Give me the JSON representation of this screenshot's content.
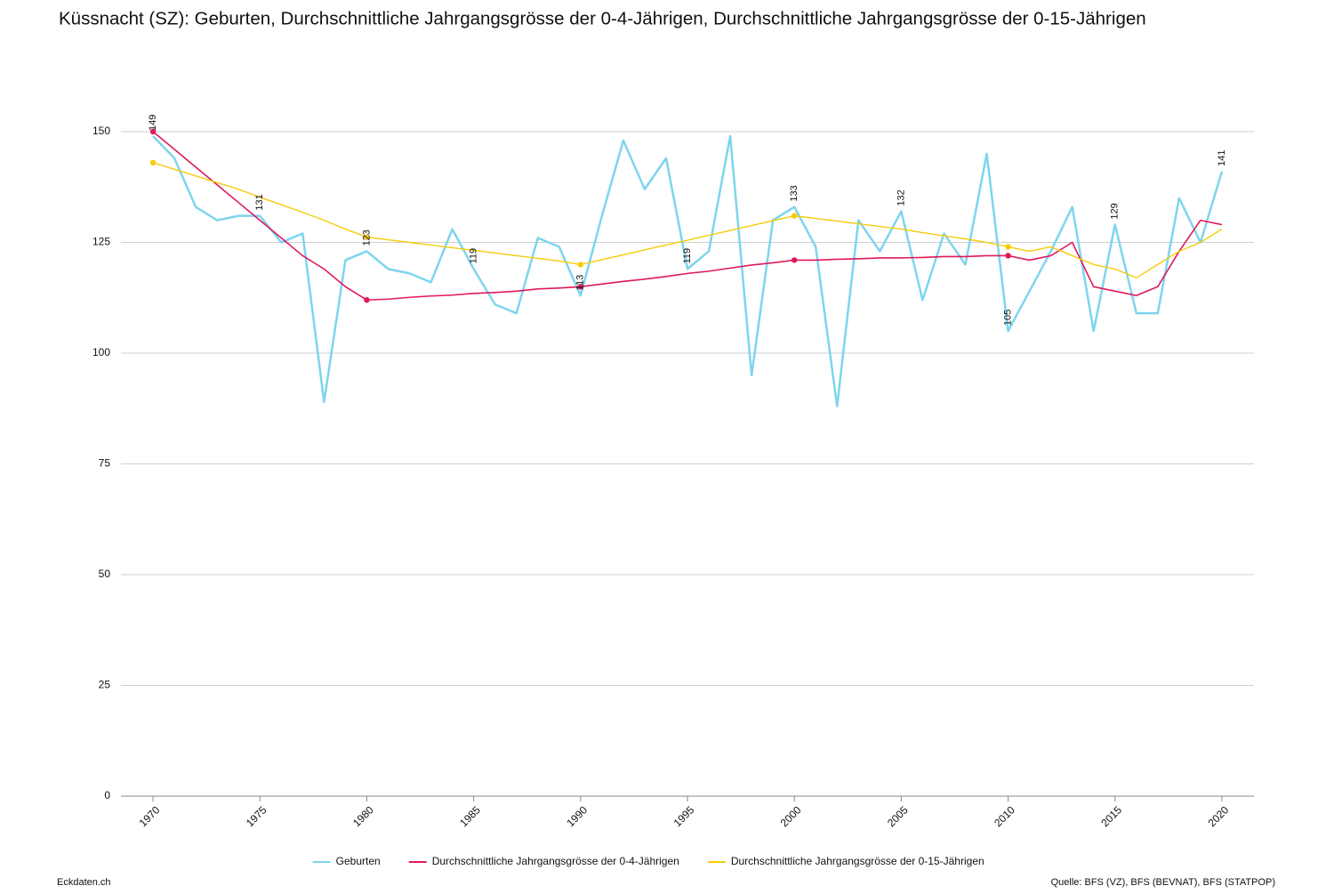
{
  "chart_data": {
    "type": "line",
    "title": "Küssnacht (SZ): Geburten, Durchschnittliche Jahrgangsgrösse der 0-4-Jährigen, Durchschnittliche Jahrgangsgrösse der 0-15-Jährigen",
    "x": [
      1970,
      1971,
      1972,
      1973,
      1974,
      1975,
      1976,
      1977,
      1978,
      1979,
      1980,
      1981,
      1982,
      1983,
      1984,
      1985,
      1986,
      1987,
      1988,
      1989,
      1990,
      1991,
      1992,
      1993,
      1994,
      1995,
      1996,
      1997,
      1998,
      1999,
      2000,
      2001,
      2002,
      2003,
      2004,
      2005,
      2006,
      2007,
      2008,
      2009,
      2010,
      2011,
      2012,
      2013,
      2014,
      2015,
      2016,
      2017,
      2018,
      2019,
      2020
    ],
    "series": [
      {
        "name": "Geburten",
        "color": "#7dd5ee",
        "values": [
          149,
          144,
          133,
          130,
          131,
          131,
          125,
          127,
          89,
          121,
          123,
          119,
          118,
          116,
          128,
          119,
          111,
          109,
          126,
          124,
          113,
          131,
          148,
          137,
          144,
          119,
          123,
          149,
          95,
          130,
          133,
          124,
          88,
          130,
          123,
          132,
          112,
          127,
          120,
          145,
          105,
          114,
          123,
          133,
          105,
          129,
          109,
          109,
          135,
          125,
          141
        ]
      },
      {
        "name": "Durchschnittliche Jahrgangsgrösse der 0-4-Jährigen",
        "color": "#e0195a",
        "values": [
          150,
          146,
          142,
          138,
          134,
          130,
          126,
          122,
          119,
          115,
          112,
          112.2,
          112.6,
          112.9,
          113.1,
          113.5,
          113.7,
          114,
          114.5,
          114.7,
          115,
          115.6,
          116.2,
          116.7,
          117.3,
          118,
          118.5,
          119.2,
          119.9,
          120.4,
          121,
          121,
          121.2,
          121.3,
          121.5,
          121.5,
          121.6,
          121.8,
          121.8,
          122,
          122,
          121,
          122,
          125,
          115,
          114,
          113,
          115,
          123,
          130,
          129
        ]
      },
      {
        "name": "Durchschnittliche Jahrgangsgrösse der 0-15-Jährigen",
        "color": "#f5cc0a",
        "values": [
          143,
          141.5,
          140,
          138.5,
          137,
          135.2,
          133.5,
          131.8,
          130,
          128,
          126.2,
          125.6,
          125,
          124.4,
          123.8,
          123.2,
          122.6,
          122,
          121.4,
          120.8,
          120,
          121.1,
          122.2,
          123.3,
          124.4,
          125.5,
          126.6,
          127.7,
          128.8,
          129.9,
          131,
          130.4,
          129.8,
          129.2,
          128.6,
          128,
          127.2,
          126.5,
          125.8,
          125,
          124,
          123,
          124,
          122,
          120,
          119,
          117,
          120,
          123,
          125,
          128
        ]
      }
    ],
    "xlim": [
      1968.5,
      2021.5
    ],
    "xticks": [
      1970,
      1975,
      1980,
      1985,
      1990,
      1995,
      2000,
      2005,
      2010,
      2015,
      2020
    ],
    "ylim": [
      0,
      150
    ],
    "yticks": [
      0,
      25,
      50,
      75,
      100,
      125,
      150
    ],
    "grid": true,
    "footer_left": "Eckdaten.ch",
    "source": "Quelle: BFS (VZ), BFS (BEVNAT), BFS (STATPOP)"
  }
}
